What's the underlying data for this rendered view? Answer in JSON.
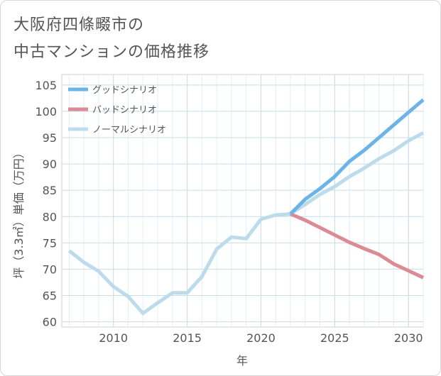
{
  "title_line1": "大阪府四條畷市の",
  "title_line2": "中古マンションの価格推移",
  "chart_data": {
    "type": "line",
    "xlabel": "年",
    "ylabel": "坪（3.3㎡）単価（万円）",
    "xlim": [
      2006.5,
      2031
    ],
    "ylim": [
      59,
      107
    ],
    "xticks": [
      2010,
      2015,
      2020,
      2025,
      2030
    ],
    "yticks": [
      60,
      65,
      70,
      75,
      80,
      85,
      90,
      95,
      100,
      105
    ],
    "grid": true,
    "legend_position": "top-left",
    "series": [
      {
        "name": "グッドシナリオ",
        "color": "#6cb4e8",
        "x": [
          2022,
          2023,
          2024,
          2025,
          2026,
          2027,
          2028,
          2029,
          2030,
          2031
        ],
        "y": [
          80.5,
          83.3,
          85.3,
          87.6,
          90.5,
          92.6,
          95.0,
          97.4,
          99.8,
          102.2
        ]
      },
      {
        "name": "バッドシナリオ",
        "color": "#dc8a93",
        "x": [
          2022,
          2023,
          2024,
          2025,
          2026,
          2027,
          2028,
          2029,
          2030,
          2031
        ],
        "y": [
          80.5,
          79.3,
          77.9,
          76.5,
          75.1,
          73.9,
          72.8,
          71.0,
          69.7,
          68.4
        ]
      },
      {
        "name": "ノーマルシナリオ",
        "color": "#bcdcec",
        "x": [
          2007,
          2008,
          2009,
          2010,
          2011,
          2012,
          2013,
          2014,
          2015,
          2016,
          2017,
          2018,
          2019,
          2020,
          2021,
          2022,
          2023,
          2024,
          2025,
          2026,
          2027,
          2028,
          2029,
          2030,
          2031
        ],
        "y": [
          73.5,
          71.3,
          69.6,
          66.7,
          64.8,
          61.6,
          63.6,
          65.5,
          65.5,
          68.6,
          73.8,
          76.1,
          75.8,
          79.5,
          80.3,
          80.5,
          82.3,
          84.2,
          85.7,
          87.6,
          89.2,
          91.0,
          92.5,
          94.4,
          95.9
        ]
      }
    ]
  }
}
